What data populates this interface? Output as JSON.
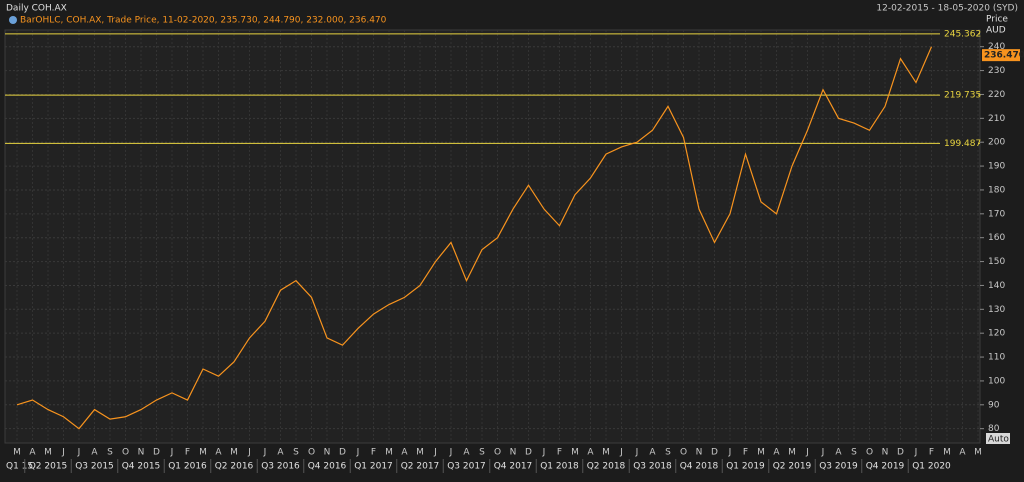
{
  "chart_data": {
    "type": "line",
    "title": "Daily COH.AX",
    "date_range": "12-02-2015 - 18-05-2020 (SYD)",
    "legend_text": "BarOHLC, COH.AX, Trade Price, 11-02-2020, 235.730, 244.790, 232.000, 236.470",
    "y_axis_label": "Price",
    "y_axis_unit": "AUD",
    "button": "Auto",
    "categories": [
      "M",
      "A",
      "M",
      "J",
      "J",
      "A",
      "S",
      "O",
      "N",
      "D",
      "J",
      "F",
      "M",
      "A",
      "M",
      "J",
      "J",
      "A",
      "S",
      "O",
      "N",
      "D",
      "J",
      "F",
      "M",
      "A",
      "M",
      "J",
      "J",
      "A",
      "S",
      "O",
      "N",
      "D",
      "J",
      "F",
      "M",
      "A",
      "M",
      "J",
      "J",
      "A",
      "S",
      "O",
      "N",
      "D",
      "J",
      "F",
      "M",
      "A",
      "M",
      "J",
      "J",
      "A",
      "S",
      "O",
      "N",
      "D",
      "J",
      "F",
      "M",
      "A",
      "M"
    ],
    "quarters": [
      "Q1 15",
      "Q2 2015",
      "Q3 2015",
      "Q4 2015",
      "Q1 2016",
      "Q2 2016",
      "Q3 2016",
      "Q4 2016",
      "Q1 2017",
      "Q2 2017",
      "Q3 2017",
      "Q4 2017",
      "Q1 2018",
      "Q2 2018",
      "Q3 2018",
      "Q4 2018",
      "Q1 2019",
      "Q2 2019",
      "Q3 2019",
      "Q4 2019",
      "Q1 2020"
    ],
    "series": [
      {
        "name": "COH.AX",
        "color": "#f7931e",
        "values": [
          90,
          92,
          88,
          85,
          80,
          88,
          84,
          85,
          88,
          92,
          95,
          92,
          105,
          102,
          108,
          118,
          125,
          138,
          142,
          135,
          118,
          115,
          122,
          128,
          132,
          135,
          140,
          150,
          158,
          142,
          155,
          160,
          172,
          182,
          172,
          165,
          178,
          185,
          195,
          198,
          200,
          205,
          215,
          202,
          172,
          158,
          170,
          195,
          175,
          170,
          190,
          205,
          222,
          210,
          208,
          205,
          215,
          235,
          225,
          240,
          null,
          null,
          null
        ]
      }
    ],
    "lines": [
      {
        "value": 245.362
      },
      {
        "value": 219.735
      },
      {
        "value": 199.487
      }
    ],
    "lines_color": "#e8d440",
    "last_price": {
      "value": 236.47,
      "label": "236.470"
    },
    "ylim": [
      74,
      247
    ],
    "yticks": [
      80,
      90,
      100,
      110,
      120,
      130,
      140,
      150,
      160,
      170,
      180,
      190,
      200,
      210,
      220,
      230,
      240
    ],
    "grid": true
  }
}
